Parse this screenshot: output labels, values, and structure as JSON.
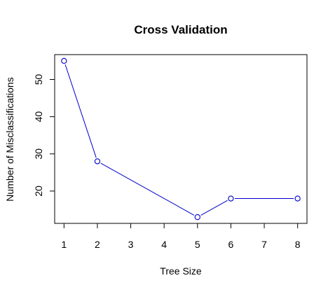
{
  "chart_data": {
    "type": "line",
    "title": "Cross Validation",
    "xlabel": "Tree Size",
    "ylabel": "Number of Misclassifications",
    "x": [
      1,
      2,
      5,
      6,
      8
    ],
    "y": [
      55,
      28,
      13,
      18,
      18
    ],
    "xlim": [
      0.72,
      8.28
    ],
    "ylim": [
      11.32,
      56.68
    ],
    "xticks": [
      1,
      2,
      3,
      4,
      5,
      6,
      7,
      8
    ],
    "yticks": [
      20,
      30,
      40,
      50
    ],
    "series_color": "#0000cc",
    "grid": false,
    "legend": "none"
  }
}
